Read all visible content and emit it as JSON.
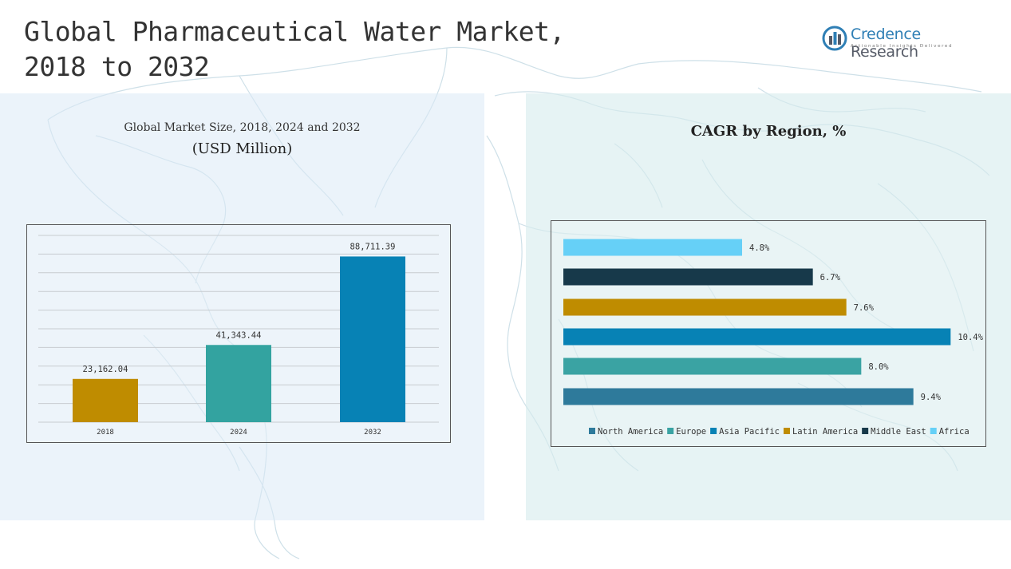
{
  "title_line1": "Global Pharmaceutical Water Market,",
  "title_line2": "2018 to 2032",
  "logo": {
    "name_part1": "Credence",
    "name_part2": "Research",
    "tagline": "Actionable Insights Delivered",
    "icon": "bar-chart-circle-icon",
    "color": "#2f7fb5"
  },
  "left_panel": {
    "subtitle": "Global Market Size, 2018, 2024 and 2032",
    "unit": "(USD Million)"
  },
  "right_panel": {
    "subtitle": "CAGR by Region, %"
  },
  "chart_data": [
    {
      "type": "bar",
      "title": "Global Market Size, 2018, 2024 and 2032",
      "ylabel": "(USD Million)",
      "categories": [
        "2018",
        "2024",
        "2032"
      ],
      "values": [
        23162.04,
        41343.44,
        88711.39
      ],
      "value_labels": [
        "23,162.04",
        "41,343.44",
        "88,711.39"
      ],
      "colors": [
        "#bf8c00",
        "#33a3a0",
        "#0782b5"
      ],
      "ylim": [
        0,
        100000
      ],
      "grid": true,
      "legend": "none"
    },
    {
      "type": "bar",
      "orientation": "horizontal",
      "title": "CAGR by Region, %",
      "categories": [
        "North America",
        "Europe",
        "Asia Pacific",
        "Latin America",
        "Middle East",
        "Africa"
      ],
      "values": [
        9.4,
        8.0,
        10.4,
        7.6,
        6.7,
        4.8
      ],
      "value_labels": [
        "9.4%",
        "8.0%",
        "10.4%",
        "7.6%",
        "6.7%",
        "4.8%"
      ],
      "colors": [
        "#2e7a9b",
        "#3aa3a3",
        "#0782b5",
        "#bf8c00",
        "#17394a",
        "#66d0f7"
      ],
      "xlim": [
        0,
        10.8
      ],
      "grid": false,
      "legend": "bottom"
    }
  ]
}
